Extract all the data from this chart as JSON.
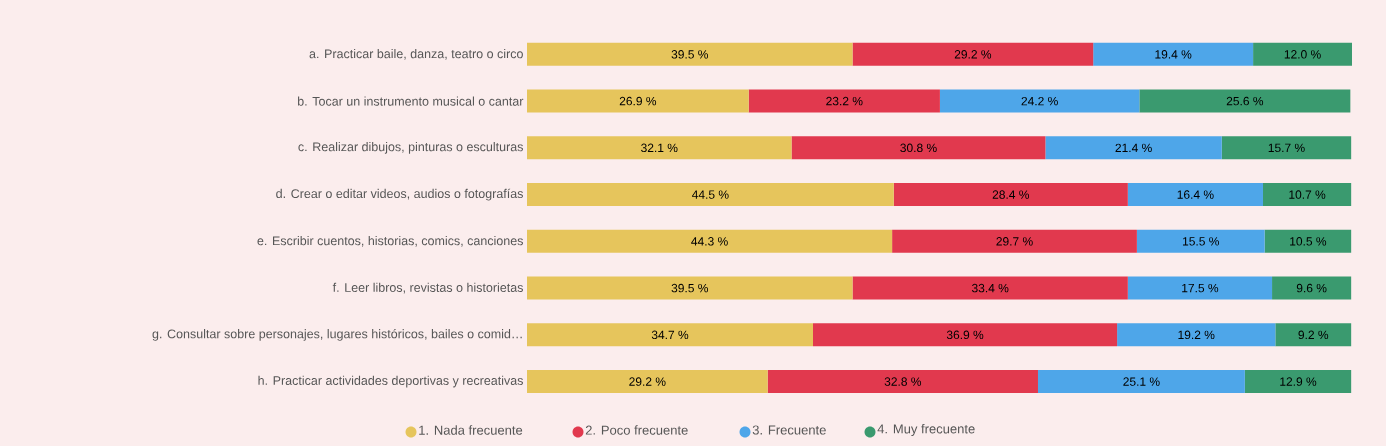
{
  "chart_data": {
    "type": "bar",
    "orientation": "horizontal",
    "stacked": true,
    "legend": "bottom",
    "categories": [
      "a. Practicar baile, danza, teatro o circo",
      "b. Tocar un instrumento musical o cantar",
      "c. Realizar dibujos, pinturas o esculturas",
      "d. Crear o editar videos, audios o fotografías",
      "e. Escribir cuentos, historias, comics, canciones",
      "f. Leer libros, revistas o historietas",
      "g. Consultar sobre personajes, lugares históricos, bailes o comid…",
      "h. Practicar actividades deportivas y recreativas"
    ],
    "series": [
      {
        "name": "1. Nada frecuente",
        "color": "#e6c55c",
        "values": [
          39.5,
          26.9,
          32.1,
          44.5,
          44.3,
          39.5,
          34.7,
          29.2
        ],
        "value_labels": [
          "39.5 %",
          "26.9 %",
          "32.1 %",
          "44.5 %",
          "44.3 %",
          "39.5 %",
          "34.7 %",
          "29.2 %"
        ]
      },
      {
        "name": "2. Poco frecuente",
        "color": "#e1394e",
        "values": [
          29.2,
          23.2,
          30.8,
          28.4,
          29.7,
          33.4,
          36.9,
          32.8
        ],
        "value_labels": [
          "29.2 %",
          "23.2 %",
          "30.8 %",
          "28.4 %",
          "29.7 %",
          "33.4 %",
          "36.9 %",
          "32.8 %"
        ]
      },
      {
        "name": "3. Frecuente",
        "color": "#4ea6e9",
        "values": [
          19.4,
          24.2,
          21.4,
          16.4,
          15.5,
          17.5,
          19.2,
          25.1
        ],
        "value_labels": [
          "19.4 %",
          "24.2 %",
          "21.4 %",
          "16.4 %",
          "15.5 %",
          "17.5 %",
          "19.2 %",
          "25.1 %"
        ]
      },
      {
        "name": "4. Muy frecuente",
        "color": "#3a9a6f",
        "values": [
          12.0,
          25.6,
          15.7,
          10.7,
          10.5,
          9.6,
          9.2,
          12.9
        ],
        "value_labels": [
          "12.0 %",
          "25.6 %",
          "15.7 %",
          "10.7 %",
          "10.5 %",
          "9.6 %",
          "9.2 %",
          "12.9 %"
        ]
      }
    ]
  }
}
